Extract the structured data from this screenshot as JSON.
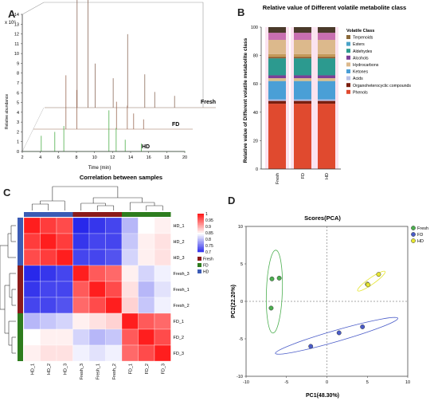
{
  "panels": {
    "a": "A",
    "b": "B",
    "c": "C",
    "d": "D"
  },
  "panel_a": {
    "y_multiplier": "x 10⁶",
    "ylabel": "Relative abundance",
    "xlabel": "Time (min)",
    "yticks": [
      0,
      1,
      2,
      3,
      4,
      5,
      6,
      7,
      8,
      9,
      10,
      11,
      12,
      13,
      14
    ],
    "xticks": [
      2,
      4,
      6,
      8,
      10,
      12,
      14,
      16,
      18,
      20
    ],
    "traces": [
      {
        "name": "Fresh",
        "color": "#8c6a5a",
        "peaks": [
          [
            5.6,
            14
          ],
          [
            6.8,
            13
          ],
          [
            7.6,
            4.5
          ],
          [
            9.6,
            3
          ],
          [
            11.2,
            7.5
          ],
          [
            13.1,
            3.4
          ],
          [
            14.2,
            1.6
          ],
          [
            16.4,
            1.2
          ]
        ]
      },
      {
        "name": "FD",
        "color": "#9b6a55",
        "peaks": [
          [
            5.6,
            5.5
          ],
          [
            6.8,
            4
          ],
          [
            11.2,
            2.8
          ],
          [
            12.4,
            2.4
          ],
          [
            13.1,
            1.6
          ],
          [
            14.2,
            1.0
          ]
        ]
      },
      {
        "name": "HD",
        "color": "#4daf4a",
        "peaks": [
          [
            4.1,
            1.6
          ],
          [
            5.6,
            2.0
          ],
          [
            6.6,
            2.6
          ],
          [
            11.6,
            4.2
          ],
          [
            12.4,
            2.4
          ],
          [
            13.4,
            1.2
          ],
          [
            15.2,
            0.8
          ]
        ]
      }
    ]
  },
  "chart_data": [
    {
      "type": "bar",
      "title": "Relative value of Different volatile metabolite class",
      "ylabel": "Relative value of Different volatile metabolite class",
      "categories": [
        "Fresh",
        "FD",
        "HD"
      ],
      "ylim": [
        0,
        100
      ],
      "yticks": [
        0,
        20,
        40,
        60,
        80,
        100
      ],
      "legend_title": "Volatile Class",
      "stacked": true,
      "series": [
        {
          "name": "Phenols",
          "color": "#e04a2f",
          "values": [
            46,
            46,
            46
          ]
        },
        {
          "name": "Organoheterocyclic compounds",
          "color": "#7a1e0e",
          "values": [
            2,
            2,
            2
          ]
        },
        {
          "name": "Acids",
          "color": "#b9c0e6",
          "values": [
            1,
            1,
            1
          ]
        },
        {
          "name": "Ketones",
          "color": "#4a9fd6",
          "values": [
            13,
            13,
            13
          ]
        },
        {
          "name": "Hydrocarbons",
          "color": "#d9c08a",
          "values": [
            2,
            2,
            2
          ]
        },
        {
          "name": "Alcohols",
          "color": "#7b3f98",
          "values": [
            2,
            2,
            2
          ]
        },
        {
          "name": "Aldehydes",
          "color": "#2c9a8f",
          "values": [
            12,
            12,
            12
          ]
        },
        {
          "name": "Esters",
          "color": "#8a5a2b",
          "values": [
            1,
            1,
            1
          ]
        },
        {
          "name": "Terpenoids",
          "color": "#c49a5a",
          "values": [
            2,
            2,
            2
          ]
        },
        {
          "name": "Esters",
          "color": "#dcb98c",
          "values": [
            10,
            10,
            10
          ]
        },
        {
          "name": "Terpenoids",
          "color": "#c86fb0",
          "values": [
            5,
            5,
            5
          ]
        },
        {
          "name": "Phenols",
          "color": "#4a3a2a",
          "values": [
            4,
            4,
            4
          ]
        }
      ],
      "legend": [
        {
          "name": "Terpenoids",
          "color": "#8a6a3a"
        },
        {
          "name": "Esters",
          "color": "#4aa3c8"
        },
        {
          "name": "Aldehydes",
          "color": "#2c9a8f"
        },
        {
          "name": "Alcohols",
          "color": "#7b3f98"
        },
        {
          "name": "Hydrocarbons",
          "color": "#dcb98c"
        },
        {
          "name": "Ketones",
          "color": "#4a9fd6"
        },
        {
          "name": "Acids",
          "color": "#b9c0e6"
        },
        {
          "name": "Organoheterocyclic compounds",
          "color": "#7a1e0e"
        },
        {
          "name": "Phenols",
          "color": "#e04a2f"
        }
      ]
    },
    {
      "type": "heatmap",
      "title": "Correlation between samples",
      "rows": [
        "HD_1",
        "HD_2",
        "HD_3",
        "Fresh_3",
        "Fresh_1",
        "Fresh_2",
        "FD_1",
        "FD_2",
        "FD_3"
      ],
      "cols": [
        "HD_1",
        "HD_2",
        "HD_3",
        "Fresh_3",
        "Fresh_1",
        "Fresh_2",
        "FD_1",
        "FD_2",
        "FD_3"
      ],
      "values": [
        [
          1.0,
          0.98,
          0.97,
          0.7,
          0.71,
          0.72,
          0.8,
          0.85,
          0.86
        ],
        [
          0.98,
          1.0,
          0.98,
          0.71,
          0.72,
          0.72,
          0.81,
          0.86,
          0.87
        ],
        [
          0.97,
          0.98,
          1.0,
          0.72,
          0.72,
          0.73,
          0.82,
          0.86,
          0.87
        ],
        [
          0.7,
          0.71,
          0.72,
          1.0,
          0.96,
          0.95,
          0.86,
          0.82,
          0.84
        ],
        [
          0.71,
          0.72,
          0.72,
          0.96,
          1.0,
          0.97,
          0.87,
          0.8,
          0.83
        ],
        [
          0.72,
          0.72,
          0.73,
          0.95,
          0.97,
          1.0,
          0.88,
          0.81,
          0.84
        ],
        [
          0.8,
          0.81,
          0.82,
          0.86,
          0.87,
          0.88,
          1.0,
          0.96,
          0.95
        ],
        [
          0.85,
          0.86,
          0.86,
          0.82,
          0.8,
          0.81,
          0.96,
          1.0,
          0.97
        ],
        [
          0.86,
          0.87,
          0.87,
          0.84,
          0.83,
          0.84,
          0.95,
          0.97,
          1.0
        ]
      ],
      "colorbar_ticks": [
        1,
        0.95,
        0.9,
        0.85,
        0.8,
        0.75,
        0.7
      ],
      "groups": [
        {
          "name": "Fresh",
          "color": "#8b1a1a"
        },
        {
          "name": "FD",
          "color": "#2e7d1e"
        },
        {
          "name": "HD",
          "color": "#3b5bb5"
        }
      ]
    },
    {
      "type": "scatter",
      "title": "Scores(PCA)",
      "xlabel": "PC1(48.30%)",
      "ylabel": "PC2(22.20%)",
      "xlim": [
        -10,
        10
      ],
      "ylim": [
        -10,
        10
      ],
      "xticks": [
        -10,
        -5,
        0,
        5,
        10
      ],
      "yticks": [
        -10,
        -5,
        0,
        5,
        10
      ],
      "series": [
        {
          "name": "Fresh",
          "color": "#4caf50",
          "points": [
            [
              -6.8,
              3.0
            ],
            [
              -5.9,
              3.1
            ],
            [
              -6.9,
              -0.9
            ]
          ]
        },
        {
          "name": "FD",
          "color": "#4a5cc8",
          "points": [
            [
              -2.0,
              -6.0
            ],
            [
              1.5,
              -4.2
            ],
            [
              4.4,
              -3.4
            ]
          ]
        },
        {
          "name": "HD",
          "color": "#e6e630",
          "points": [
            [
              5.0,
              2.3
            ],
            [
              5.1,
              2.2
            ],
            [
              6.4,
              3.6
            ]
          ]
        }
      ]
    }
  ]
}
